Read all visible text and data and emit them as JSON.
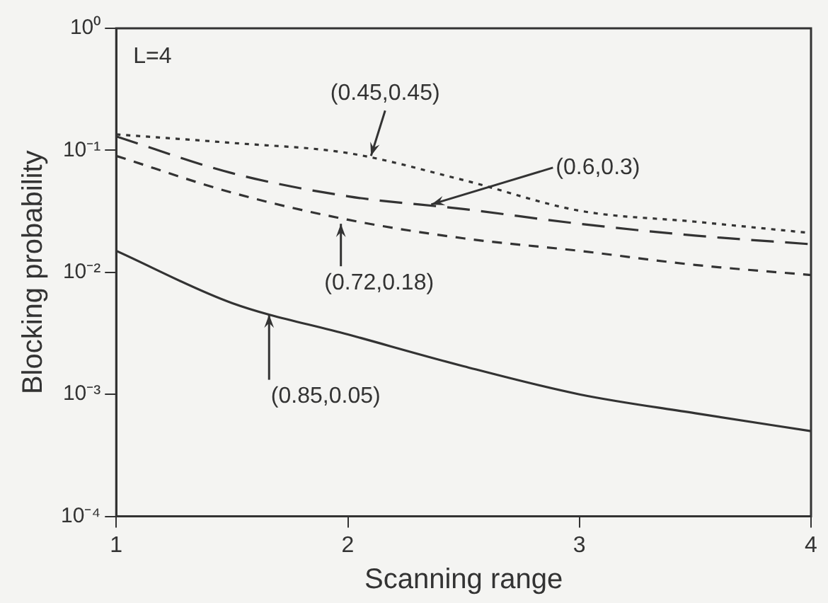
{
  "chart_data": {
    "type": "line",
    "xlabel": "Scanning range",
    "ylabel": "Blocking probability",
    "log": "y",
    "xlim": [
      1,
      4
    ],
    "xticks": [
      1,
      2,
      3,
      4
    ],
    "ylim": [
      0.0001,
      1
    ],
    "yticks": [
      {
        "value": 1,
        "label": "10⁰"
      },
      {
        "value": 0.1,
        "label": "10⁻¹"
      },
      {
        "value": 0.01,
        "label": "10⁻²"
      },
      {
        "value": 0.001,
        "label": "10⁻³"
      },
      {
        "value": 0.0001,
        "label": "10⁻⁴"
      }
    ],
    "grid": false,
    "legend": false,
    "marker": "none",
    "x": [
      1,
      1.5,
      2,
      2.5,
      3,
      3.5,
      4
    ],
    "series": [
      {
        "color": "#333333",
        "line_style": "dotted",
        "values": [
          0.135,
          0.115,
          0.095,
          0.057,
          0.032,
          0.026,
          0.021
        ]
      },
      {
        "color": "#333333",
        "line_style": "dashed",
        "values": [
          0.13,
          0.065,
          0.042,
          0.033,
          0.025,
          0.02,
          0.017
        ]
      },
      {
        "color": "#333333",
        "line_style": "dashed",
        "values": [
          0.09,
          0.045,
          0.027,
          0.019,
          0.015,
          0.0115,
          0.0095
        ]
      },
      {
        "color": "#333333",
        "line_style": "solid",
        "values": [
          0.015,
          0.0056,
          0.0031,
          0.0017,
          0.001,
          0.0007,
          0.0005
        ]
      }
    ],
    "annotations": [
      "L=4",
      {
        "text": "(0.45,0.45)",
        "x": 2.1,
        "y": 0.09
      },
      {
        "text": "(0.6,0.3)",
        "x": 2.36,
        "y": 0.036
      },
      {
        "text": "(0.72,0.18)",
        "x": 1.97,
        "y": 0.025
      },
      {
        "text": "(0.85,0.05)",
        "x": 1.66,
        "y": 0.0045
      }
    ]
  }
}
